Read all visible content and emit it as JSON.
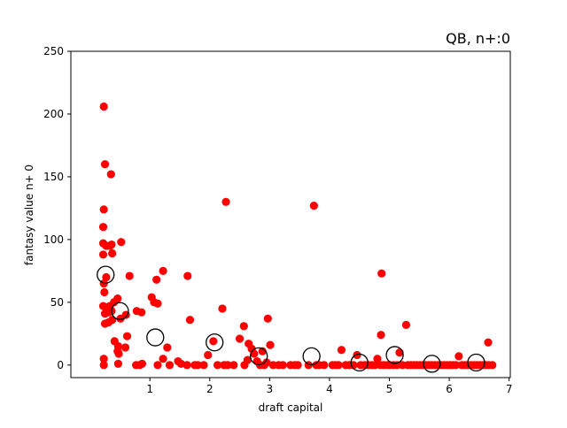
{
  "chart_data": {
    "type": "scatter",
    "title": "QB, n+:0",
    "xlabel": "draft capital",
    "ylabel": "fantasy value n+ 0",
    "xlim": [
      -0.32,
      7.02
    ],
    "ylim": [
      -10,
      250
    ],
    "xticks": [
      1,
      2,
      3,
      4,
      5,
      6,
      7
    ],
    "yticks": [
      0,
      50,
      100,
      150,
      200,
      250
    ],
    "grid": false,
    "colors": {
      "points": "#ff0000",
      "means": "#000000"
    },
    "series": [
      {
        "marker": "filled-circle",
        "points": [
          [
            0.23,
            206
          ],
          [
            0.25,
            160
          ],
          [
            0.35,
            152
          ],
          [
            0.23,
            124
          ],
          [
            0.22,
            110
          ],
          [
            0.22,
            97
          ],
          [
            0.27,
            95
          ],
          [
            0.33,
            95
          ],
          [
            0.36,
            96
          ],
          [
            0.22,
            88
          ],
          [
            0.37,
            89
          ],
          [
            0.52,
            98
          ],
          [
            0.23,
            65
          ],
          [
            0.27,
            70
          ],
          [
            0.24,
            58
          ],
          [
            0.22,
            47
          ],
          [
            0.27,
            46
          ],
          [
            0.33,
            47
          ],
          [
            0.4,
            50
          ],
          [
            0.46,
            53
          ],
          [
            0.25,
            41
          ],
          [
            0.31,
            42
          ],
          [
            0.36,
            43
          ],
          [
            0.51,
            37
          ],
          [
            0.6,
            40
          ],
          [
            0.25,
            33
          ],
          [
            0.31,
            34
          ],
          [
            0.37,
            36
          ],
          [
            0.41,
            19
          ],
          [
            0.47,
            15
          ],
          [
            0.46,
            11
          ],
          [
            0.48,
            9
          ],
          [
            0.59,
            14
          ],
          [
            0.62,
            23
          ],
          [
            0.66,
            71
          ],
          [
            0.23,
            5
          ],
          [
            0.23,
            0
          ],
          [
            0.47,
            1
          ],
          [
            0.78,
            43
          ],
          [
            0.86,
            42
          ],
          [
            0.77,
            0
          ],
          [
            0.83,
            0
          ],
          [
            0.87,
            1
          ],
          [
            1.03,
            54
          ],
          [
            1.07,
            50
          ],
          [
            1.11,
            68
          ],
          [
            1.13,
            49
          ],
          [
            1.22,
            75
          ],
          [
            1.22,
            5
          ],
          [
            1.29,
            14
          ],
          [
            1.13,
            0
          ],
          [
            1.33,
            0
          ],
          [
            1.47,
            3
          ],
          [
            1.52,
            1
          ],
          [
            1.62,
            0
          ],
          [
            1.63,
            71
          ],
          [
            1.67,
            36
          ],
          [
            1.75,
            0
          ],
          [
            1.8,
            0
          ],
          [
            1.9,
            0
          ],
          [
            1.97,
            8
          ],
          [
            2.06,
            19
          ],
          [
            2.13,
            0
          ],
          [
            2.21,
            45
          ],
          [
            2.27,
            130
          ],
          [
            2.24,
            0
          ],
          [
            2.3,
            0
          ],
          [
            2.4,
            0
          ],
          [
            2.5,
            21
          ],
          [
            2.57,
            31
          ],
          [
            2.58,
            0
          ],
          [
            2.63,
            4
          ],
          [
            2.65,
            17
          ],
          [
            2.7,
            13
          ],
          [
            2.74,
            9
          ],
          [
            2.79,
            3
          ],
          [
            2.84,
            0
          ],
          [
            2.88,
            11
          ],
          [
            2.91,
            0
          ],
          [
            2.97,
            37
          ],
          [
            3.01,
            16
          ],
          [
            2.95,
            2
          ],
          [
            3.06,
            0
          ],
          [
            3.15,
            0
          ],
          [
            3.22,
            0
          ],
          [
            3.35,
            0
          ],
          [
            3.42,
            0
          ],
          [
            3.47,
            0
          ],
          [
            3.65,
            0
          ],
          [
            3.74,
            127
          ],
          [
            3.78,
            0
          ],
          [
            3.83,
            0
          ],
          [
            3.91,
            0
          ],
          [
            4.05,
            0
          ],
          [
            4.1,
            0
          ],
          [
            4.15,
            0
          ],
          [
            4.2,
            12
          ],
          [
            4.27,
            0
          ],
          [
            4.33,
            0
          ],
          [
            4.4,
            0
          ],
          [
            4.46,
            8
          ],
          [
            4.52,
            0
          ],
          [
            4.59,
            0
          ],
          [
            4.65,
            0
          ],
          [
            4.71,
            0
          ],
          [
            4.76,
            0
          ],
          [
            4.8,
            5
          ],
          [
            4.85,
            0
          ],
          [
            4.87,
            73
          ],
          [
            4.86,
            24
          ],
          [
            4.91,
            0
          ],
          [
            4.97,
            0
          ],
          [
            5.01,
            0
          ],
          [
            5.07,
            0
          ],
          [
            5.13,
            0
          ],
          [
            5.17,
            10
          ],
          [
            5.22,
            0
          ],
          [
            5.28,
            32
          ],
          [
            5.31,
            0
          ],
          [
            5.36,
            0
          ],
          [
            5.41,
            0
          ],
          [
            5.46,
            0
          ],
          [
            5.51,
            0
          ],
          [
            5.56,
            0
          ],
          [
            5.61,
            0
          ],
          [
            5.66,
            0
          ],
          [
            5.71,
            0
          ],
          [
            5.76,
            0
          ],
          [
            5.81,
            0
          ],
          [
            5.86,
            0
          ],
          [
            5.91,
            0
          ],
          [
            5.96,
            0
          ],
          [
            6.01,
            0
          ],
          [
            6.06,
            0
          ],
          [
            6.11,
            0
          ],
          [
            6.16,
            7
          ],
          [
            6.21,
            0
          ],
          [
            6.26,
            0
          ],
          [
            6.31,
            0
          ],
          [
            6.36,
            0
          ],
          [
            6.41,
            0
          ],
          [
            6.46,
            0
          ],
          [
            6.51,
            0
          ],
          [
            6.56,
            0
          ],
          [
            6.61,
            0
          ],
          [
            6.65,
            18
          ],
          [
            6.66,
            0
          ],
          [
            6.72,
            0
          ]
        ]
      },
      {
        "marker": "open-circle",
        "points": [
          [
            0.26,
            72
          ],
          [
            0.5,
            43
          ],
          [
            1.09,
            22
          ],
          [
            2.08,
            18
          ],
          [
            2.82,
            7
          ],
          [
            3.7,
            7
          ],
          [
            4.5,
            2
          ],
          [
            5.09,
            8
          ],
          [
            5.71,
            1
          ],
          [
            6.45,
            2
          ]
        ]
      }
    ]
  }
}
